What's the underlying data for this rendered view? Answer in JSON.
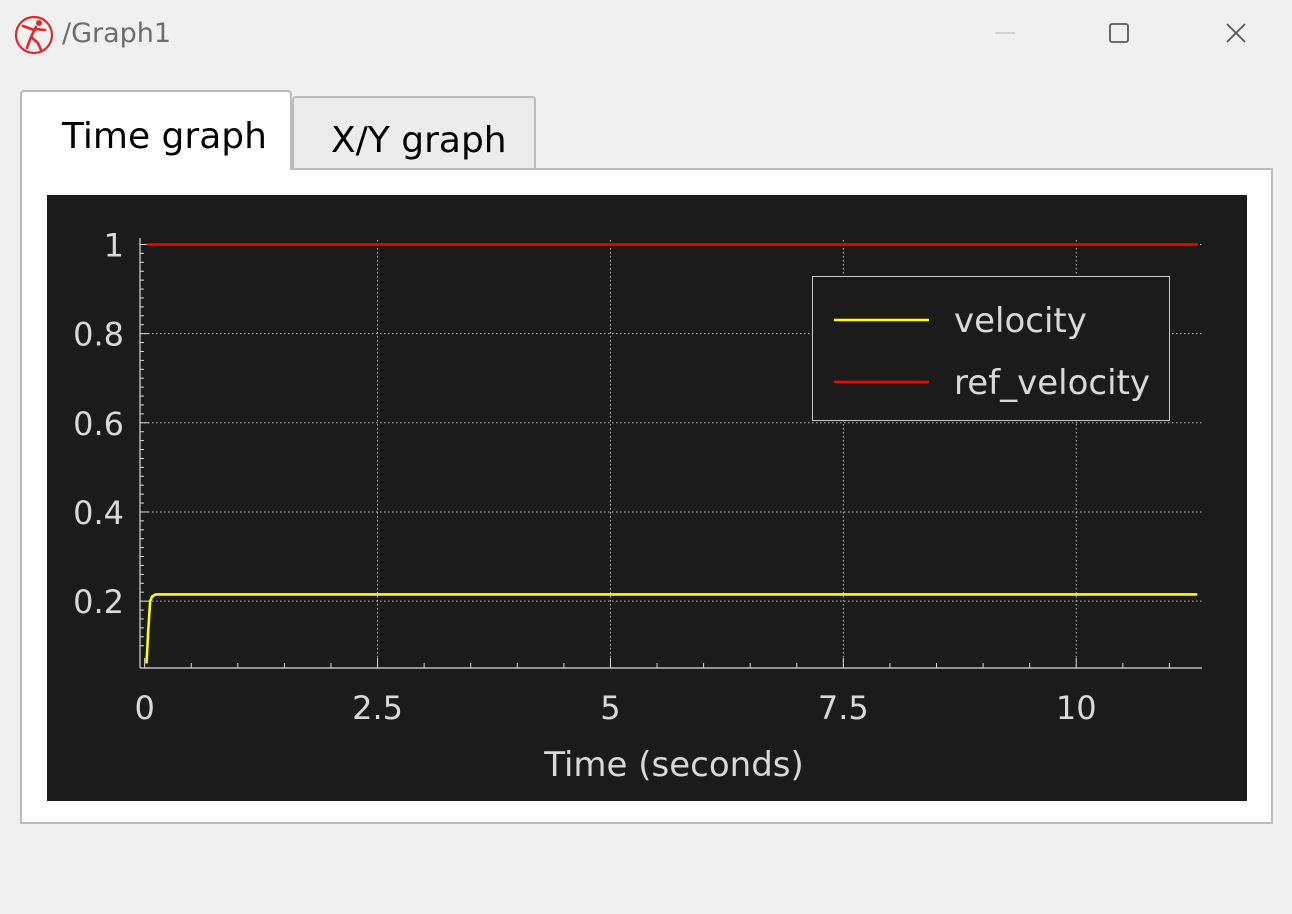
{
  "window": {
    "title": "/Graph1",
    "controls": [
      "minimize",
      "maximize",
      "close"
    ]
  },
  "tabs": [
    {
      "label": "Time graph",
      "active": true
    },
    {
      "label": "X/Y graph",
      "active": false
    }
  ],
  "colors": {
    "plot_background": "#1b1b1b",
    "axis": "#d9d9d9",
    "grid": "#bdbdbd",
    "velocity": "#ffff00",
    "ref_velocity": "#ff0000",
    "app_icon": "#e0282b"
  },
  "chart_data": {
    "type": "line",
    "xlabel": "Time (seconds)",
    "ylabel": "",
    "xlim": [
      -0.05,
      11.35
    ],
    "ylim": [
      0.05,
      1.01
    ],
    "xticks": [
      0,
      2.5,
      5,
      7.5,
      10
    ],
    "xtick_labels": [
      "0",
      "2.5",
      "5",
      "7.5",
      "10"
    ],
    "yticks": [
      0.2,
      0.4,
      0.6,
      0.8,
      1
    ],
    "ytick_labels": [
      "0.2",
      "0.4",
      "0.6",
      "0.8",
      "1"
    ],
    "grid": true,
    "legend_position": "top-right",
    "series": [
      {
        "name": "velocity",
        "color": "#ffff00",
        "x": [
          0.02,
          0.04,
          0.06,
          0.08,
          0.1,
          0.12,
          0.15,
          11.3
        ],
        "y": [
          0.06,
          0.14,
          0.2,
          0.21,
          0.213,
          0.215,
          0.215,
          0.215
        ]
      },
      {
        "name": "ref_velocity",
        "color": "#ff0000",
        "x": [
          0.02,
          11.3
        ],
        "y": [
          1,
          1
        ]
      }
    ]
  }
}
